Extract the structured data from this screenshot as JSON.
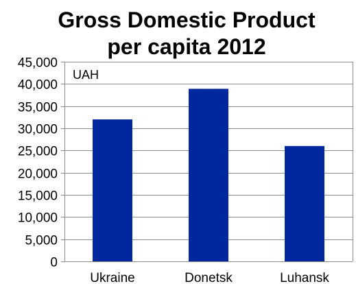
{
  "chart_data": {
    "type": "bar",
    "title": "Gross Domestic Product",
    "subtitle": "per capita 2012",
    "unit_label": "UAH",
    "categories": [
      "Ukraine",
      "Donetsk",
      "Luhansk"
    ],
    "values": [
      32000,
      38900,
      26000
    ],
    "ylim": [
      0,
      45000
    ],
    "yticks": [
      0,
      5000,
      10000,
      15000,
      20000,
      25000,
      30000,
      35000,
      40000,
      45000
    ],
    "ytick_labels": [
      "0",
      "5,000",
      "10,000",
      "15,000",
      "20,000",
      "25,000",
      "30,000",
      "35,000",
      "40,000",
      "45,000"
    ],
    "grid": true,
    "bar_color": "#00279E",
    "grid_color": "#8C8C8C"
  }
}
